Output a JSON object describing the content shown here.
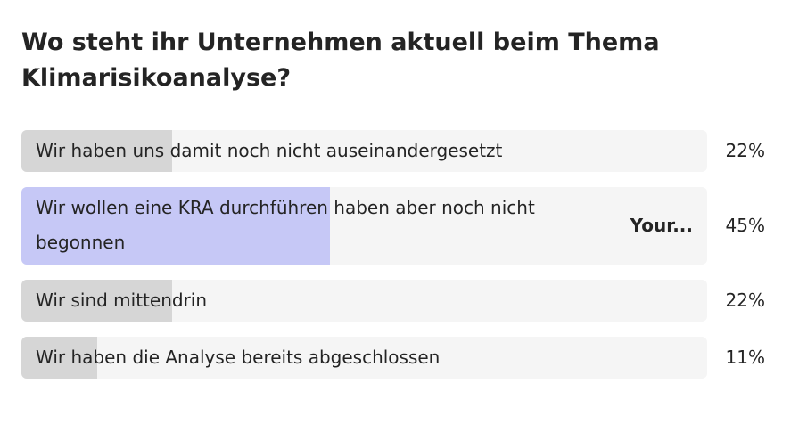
{
  "poll": {
    "title": "Wo steht ihr Unternehmen aktuell beim Thema Klimarisikoanalyse?",
    "colors": {
      "track": "#f5f5f5",
      "fill": "#d6d6d6",
      "voted_fill": "#c6c8f6"
    },
    "options": [
      {
        "label": "Wir haben uns damit noch nicht auseinandergesetzt",
        "value": 22,
        "value_label": "22%"
      },
      {
        "label": "Wir wollen eine KRA durchführen haben aber noch nicht begonnen",
        "value": 45,
        "value_label": "45%",
        "badge": "Your..."
      },
      {
        "label": "Wir sind mittendrin",
        "value": 22,
        "value_label": "22%"
      },
      {
        "label": "Wir haben die Analyse bereits abgeschlossen",
        "value": 11,
        "value_label": "11%"
      }
    ]
  }
}
